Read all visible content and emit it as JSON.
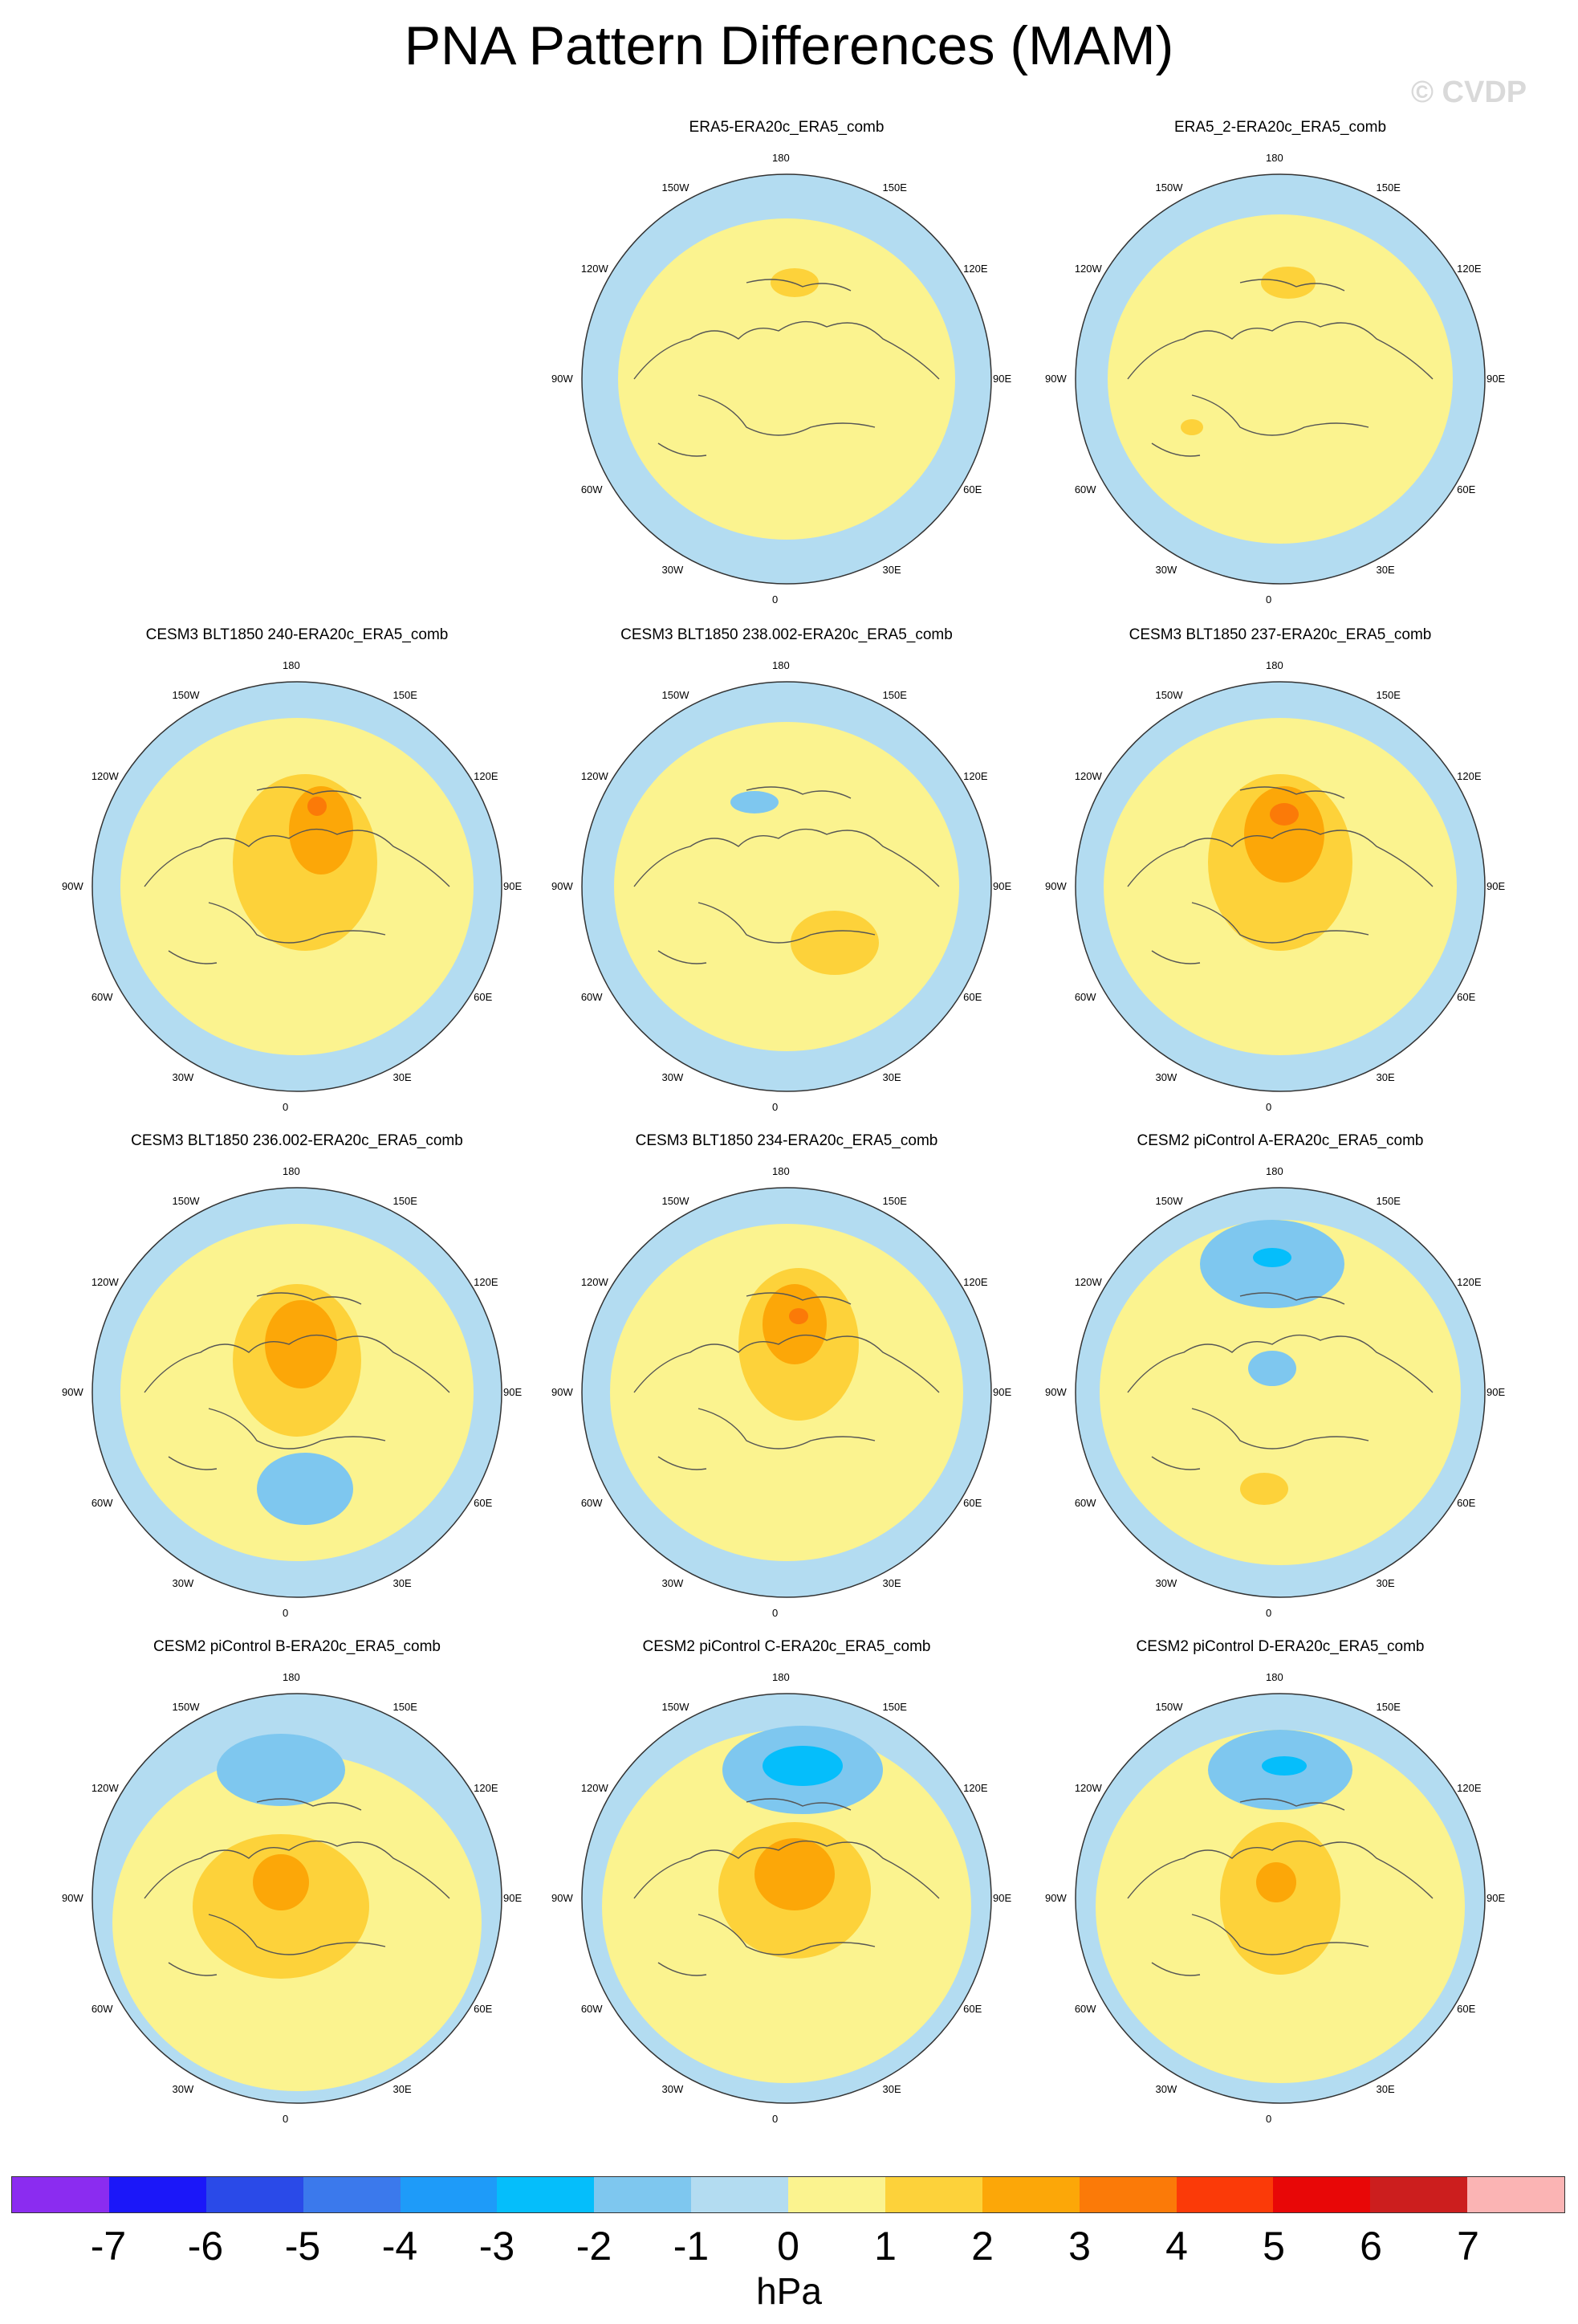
{
  "title": "PNA Pattern Differences (MAM)",
  "watermark": "© CVDP",
  "colors": {
    "ocean_neg": "#b3dcf1",
    "pos_1": "#fbf38f",
    "pos_2": "#fdd23a",
    "pos_3": "#fca708",
    "pos_4": "#fb7a08",
    "neg_2": "#7ec7ef",
    "neg_3": "#05befb",
    "coast": "#555555"
  },
  "panels": [
    {
      "title": "ERA5-ERA20c_ERA5_comb",
      "lon_labels": {
        "n": "180",
        "nne": "150E",
        "ene": "120E",
        "e": "90E",
        "ese": "60E",
        "sse": "30E",
        "s": "0",
        "ssw": "30W",
        "wsw": "60W",
        "w": "90W",
        "wnw": "120W",
        "nnw": "150W"
      }
    },
    {
      "title": "ERA5_2-ERA20c_ERA5_comb",
      "lon_labels": {
        "n": "180",
        "nne": "150E",
        "ene": "120E",
        "e": "90E",
        "ese": "60E",
        "sse": "30E",
        "s": "0",
        "ssw": "30W",
        "wsw": "60W",
        "w": "90W",
        "wnw": "120W",
        "nnw": "150W"
      }
    },
    {
      "title": "CESM3 BLT1850 240-ERA20c_ERA5_comb",
      "lon_labels": {
        "n": "180",
        "nne": "150E",
        "ene": "120E",
        "e": "90E",
        "ese": "60E",
        "sse": "30E",
        "s": "0",
        "ssw": "30W",
        "wsw": "60W",
        "w": "90W",
        "wnw": "120W",
        "nnw": "150W"
      }
    },
    {
      "title": "CESM3 BLT1850 238.002-ERA20c_ERA5_comb",
      "lon_labels": {
        "n": "180",
        "nne": "150E",
        "ene": "120E",
        "e": "90E",
        "ese": "60E",
        "sse": "30E",
        "s": "0",
        "ssw": "30W",
        "wsw": "60W",
        "w": "90W",
        "wnw": "120W",
        "nnw": "150W"
      }
    },
    {
      "title": "CESM3 BLT1850 237-ERA20c_ERA5_comb",
      "lon_labels": {
        "n": "180",
        "nne": "150E",
        "ene": "120E",
        "e": "90E",
        "ese": "60E",
        "sse": "30E",
        "s": "0",
        "ssw": "30W",
        "wsw": "60W",
        "w": "90W",
        "wnw": "120W",
        "nnw": "150W"
      }
    },
    {
      "title": "CESM3 BLT1850 236.002-ERA20c_ERA5_comb",
      "lon_labels": {
        "n": "180",
        "nne": "150E",
        "ene": "120E",
        "e": "90E",
        "ese": "60E",
        "sse": "30E",
        "s": "0",
        "ssw": "30W",
        "wsw": "60W",
        "w": "90W",
        "wnw": "120W",
        "nnw": "150W"
      }
    },
    {
      "title": "CESM3 BLT1850 234-ERA20c_ERA5_comb",
      "lon_labels": {
        "n": "180",
        "nne": "150E",
        "ene": "120E",
        "e": "90E",
        "ese": "60E",
        "sse": "30E",
        "s": "0",
        "ssw": "30W",
        "wsw": "60W",
        "w": "90W",
        "wnw": "120W",
        "nnw": "150W"
      }
    },
    {
      "title": "CESM2 piControl A-ERA20c_ERA5_comb",
      "lon_labels": {
        "n": "180",
        "nne": "150E",
        "ene": "120E",
        "e": "90E",
        "ese": "60E",
        "sse": "30E",
        "s": "0",
        "ssw": "30W",
        "wsw": "60W",
        "w": "90W",
        "wnw": "120W",
        "nnw": "150W"
      }
    },
    {
      "title": "CESM2 piControl B-ERA20c_ERA5_comb",
      "lon_labels": {
        "n": "180",
        "nne": "150E",
        "ene": "120E",
        "e": "90E",
        "ese": "60E",
        "sse": "30E",
        "s": "0",
        "ssw": "30W",
        "wsw": "60W",
        "w": "90W",
        "wnw": "120W",
        "nnw": "150W"
      }
    },
    {
      "title": "CESM2 piControl C-ERA20c_ERA5_comb",
      "lon_labels": {
        "n": "180",
        "nne": "150E",
        "ene": "120E",
        "e": "90E",
        "ese": "60E",
        "sse": "30E",
        "s": "0",
        "ssw": "30W",
        "wsw": "60W",
        "w": "90W",
        "wnw": "120W",
        "nnw": "150W"
      }
    },
    {
      "title": "CESM2 piControl D-ERA20c_ERA5_comb",
      "lon_labels": {
        "n": "180",
        "nne": "150E",
        "ene": "120E",
        "e": "90E",
        "ese": "60E",
        "sse": "30E",
        "s": "0",
        "ssw": "30W",
        "wsw": "60W",
        "w": "90W",
        "wnw": "120W",
        "nnw": "150W"
      }
    }
  ],
  "colorbar": {
    "colors": [
      "#8b2cf0",
      "#1b17f9",
      "#2a4ae8",
      "#3b79ec",
      "#1e9bf9",
      "#05befb",
      "#7ec7ef",
      "#b3dcf1",
      "#fbf38f",
      "#fdd23a",
      "#fca708",
      "#fb7a08",
      "#fb3a08",
      "#e80707",
      "#cc1e1e",
      "#fbb4b4"
    ],
    "ticks": [
      "-7",
      "-6",
      "-5",
      "-4",
      "-3",
      "-2",
      "-1",
      "0",
      "1",
      "2",
      "3",
      "4",
      "5",
      "6",
      "7"
    ],
    "units": "hPa"
  }
}
